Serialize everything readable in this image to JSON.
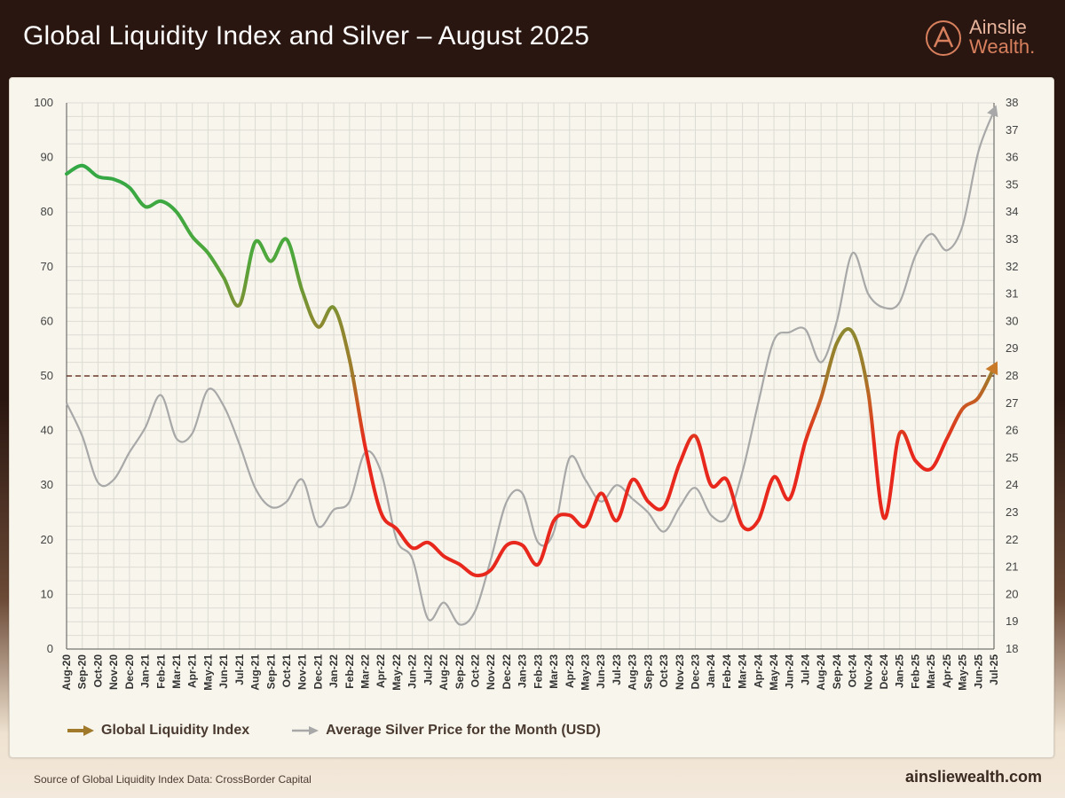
{
  "header": {
    "title": "Global Liquidity Index and Silver – August 2025"
  },
  "logo": {
    "line1": "Ainslie",
    "line2": "Wealth.",
    "icon": "ainslie-a-logo"
  },
  "footer": {
    "source": "Source of Global Liquidity Index Data: CrossBorder Capital",
    "site": "ainsliewealth.com"
  },
  "colors": {
    "header_bg": "#2a1610",
    "silver": "#a8a8a8",
    "gli_green": "#1fa84a",
    "gli_red": "#e8281c",
    "gli_gold": "#a07a2a",
    "reference_line": "#6b3a2a"
  },
  "chart_data": {
    "type": "line",
    "title": "Global Liquidity Index and Silver – August 2025",
    "x": [
      "Aug-20",
      "Sep-20",
      "Oct-20",
      "Nov-20",
      "Dec-20",
      "Jan-21",
      "Feb-21",
      "Mar-21",
      "Apr-21",
      "May-21",
      "Jun-21",
      "Jul-21",
      "Aug-21",
      "Sep-21",
      "Oct-21",
      "Nov-21",
      "Dec-21",
      "Jan-22",
      "Feb-22",
      "Mar-22",
      "Apr-22",
      "May-22",
      "Jun-22",
      "Jul-22",
      "Aug-22",
      "Sep-22",
      "Oct-22",
      "Nov-22",
      "Dec-22",
      "Jan-23",
      "Feb-23",
      "Mar-23",
      "Apr-23",
      "May-23",
      "Jun-23",
      "Jul-23",
      "Aug-23",
      "Sep-23",
      "Oct-23",
      "Nov-23",
      "Dec-23",
      "Jan-24",
      "Feb-24",
      "Mar-24",
      "Apr-24",
      "May-24",
      "Jun-24",
      "Jul-24",
      "Aug-24",
      "Sep-24",
      "Oct-24",
      "Nov-24",
      "Dec-24",
      "Jan-25",
      "Feb-25",
      "Mar-25",
      "Apr-25",
      "May-25",
      "Jun-25",
      "Jul-25"
    ],
    "ylim_left": [
      0,
      100
    ],
    "ylim_right": [
      18,
      38
    ],
    "left_ticks": [
      "0",
      "10",
      "20",
      "30",
      "40",
      "50",
      "60",
      "70",
      "80",
      "90",
      "100"
    ],
    "right_ticks": [
      "18",
      "19",
      "20",
      "21",
      "22",
      "23",
      "24",
      "25",
      "26",
      "27",
      "28",
      "29",
      "30",
      "31",
      "32",
      "33",
      "34",
      "35",
      "36",
      "37",
      "38"
    ],
    "reference_line": {
      "axis": "left",
      "value": 50
    },
    "grid": true,
    "legend_position": "bottom-left",
    "series": [
      {
        "name": "Global Liquidity Index",
        "axis": "left",
        "values": [
          87,
          88.5,
          86.5,
          86,
          84.5,
          81,
          82,
          80,
          75.5,
          72.5,
          68,
          63,
          74.5,
          71,
          75,
          65.5,
          59,
          62.5,
          53,
          37,
          25,
          22,
          18.5,
          19.5,
          17,
          15.5,
          13.5,
          14.5,
          19,
          19,
          15.5,
          23.5,
          24.5,
          22.5,
          28.5,
          23.5,
          31,
          27,
          26,
          34,
          39,
          30,
          31,
          22.5,
          23.5,
          31.5,
          27.5,
          38,
          46,
          56,
          58,
          47,
          24,
          39.5,
          34.5,
          33,
          38.5,
          44,
          46,
          51.5
        ]
      },
      {
        "name": "Average Silver Price for the Month (USD)",
        "axis": "right",
        "values": [
          27,
          25.8,
          24.1,
          24.2,
          25.2,
          26.1,
          27.3,
          25.7,
          25.9,
          27.5,
          26.9,
          25.5,
          23.9,
          23.2,
          23.4,
          24.2,
          22.5,
          23.1,
          23.4,
          25.2,
          24.5,
          22,
          21.3,
          19.1,
          19.7,
          18.9,
          19.4,
          21.3,
          23.4,
          23.7,
          21.9,
          22.3,
          25,
          24.2,
          23.4,
          24,
          23.5,
          23,
          22.3,
          23.2,
          23.9,
          22.9,
          22.8,
          24.5,
          27,
          29.3,
          29.6,
          29.7,
          28.5,
          30,
          32.5,
          31,
          30.5,
          30.7,
          32.4,
          33.2,
          32.6,
          33.5,
          36.2,
          37.7
        ]
      }
    ]
  }
}
